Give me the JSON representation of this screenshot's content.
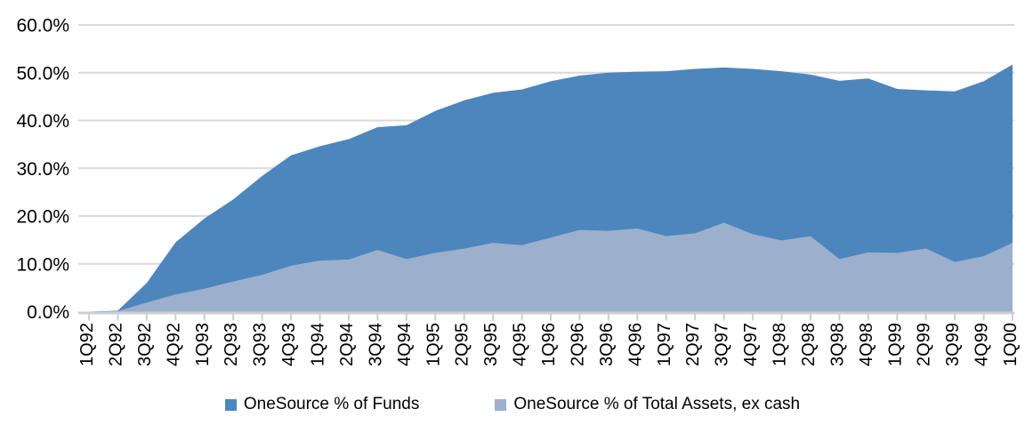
{
  "chart_data": {
    "type": "area",
    "title": "",
    "xlabel": "",
    "ylabel": "",
    "categories": [
      "1Q92",
      "2Q92",
      "3Q92",
      "4Q92",
      "1Q93",
      "2Q93",
      "3Q93",
      "4Q93",
      "1Q94",
      "2Q94",
      "3Q94",
      "4Q94",
      "1Q95",
      "2Q95",
      "3Q95",
      "4Q95",
      "1Q96",
      "2Q96",
      "3Q96",
      "4Q96",
      "1Q97",
      "2Q97",
      "3Q97",
      "4Q97",
      "1Q98",
      "2Q98",
      "3Q98",
      "4Q98",
      "1Q99",
      "2Q99",
      "3Q99",
      "4Q99",
      "1Q00"
    ],
    "series": [
      {
        "name": "OneSource % of Funds",
        "color": "#4c86bd",
        "values": [
          0.0,
          0.2,
          6.0,
          14.5,
          19.5,
          23.5,
          28.4,
          32.7,
          34.6,
          36.1,
          38.6,
          39.0,
          42.0,
          44.2,
          45.8,
          46.5,
          48.2,
          49.4,
          50.0,
          50.2,
          50.3,
          50.8,
          51.1,
          50.8,
          50.3,
          49.6,
          48.3,
          48.8,
          46.6,
          46.3,
          46.1,
          48.2,
          51.7
        ]
      },
      {
        "name": "OneSource % of Total Assets, ex cash",
        "color": "#9cafcc",
        "values": [
          0.0,
          0.1,
          1.9,
          3.6,
          4.8,
          6.3,
          7.7,
          9.6,
          10.7,
          10.9,
          12.9,
          11.0,
          12.3,
          13.2,
          14.4,
          13.9,
          15.5,
          17.1,
          16.9,
          17.4,
          15.8,
          16.4,
          18.6,
          16.2,
          14.9,
          15.8,
          11.0,
          12.4,
          12.3,
          13.2,
          10.4,
          11.6,
          14.4
        ]
      }
    ],
    "ylim": [
      0,
      60
    ],
    "ytick_labels": [
      "0.0%",
      "10.0%",
      "20.0%",
      "30.0%",
      "40.0%",
      "50.0%",
      "60.0%"
    ],
    "ytick_values": [
      0,
      10,
      20,
      30,
      40,
      50,
      60
    ],
    "grid": "horizontal",
    "legend_position": "bottom",
    "overlap_mode": "overlaid",
    "gridline_color": "#d9d9d9",
    "axis_color": "#cfcfcf",
    "text_color": "#000000",
    "background_color": "#ffffff"
  }
}
